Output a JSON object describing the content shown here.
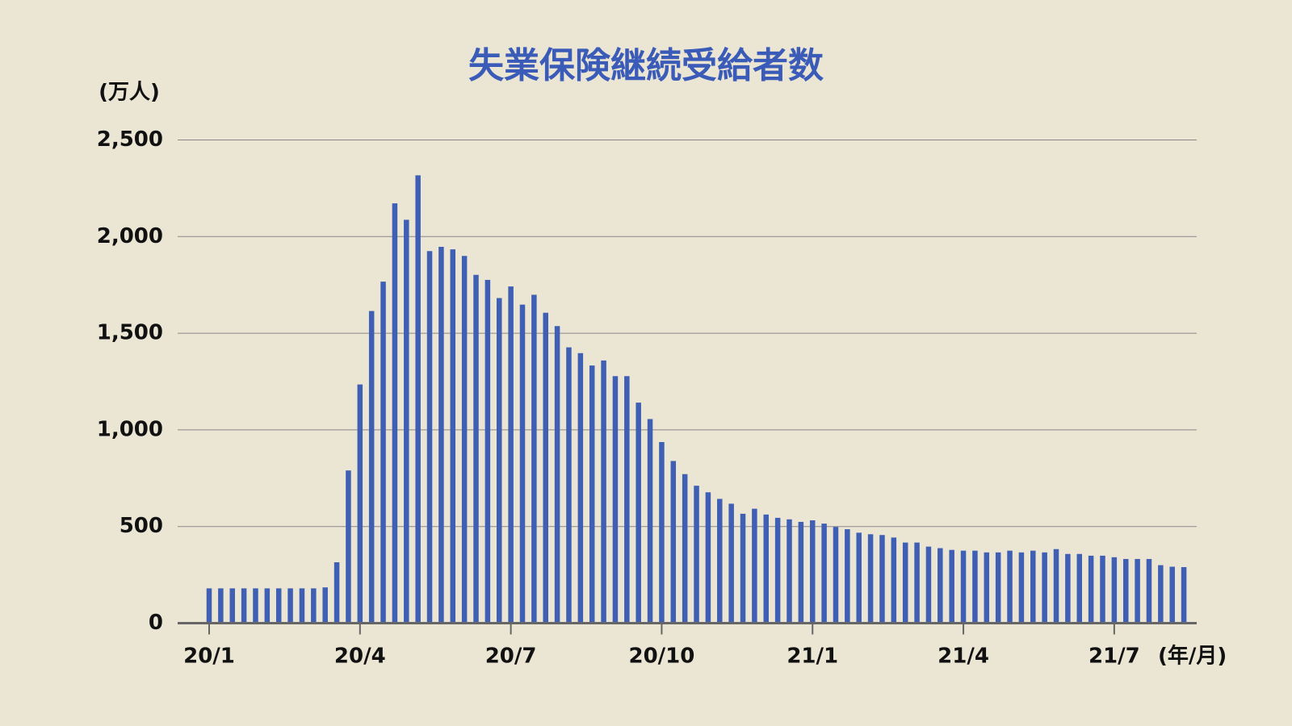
{
  "chart_data": {
    "type": "bar",
    "title": "失業保険継続受給者数",
    "y_label": "(万人)",
    "x_label": "(年/月)",
    "color": "#3f5fb5",
    "grid": true,
    "ylim": [
      0,
      2500
    ],
    "yticks": [
      0,
      500,
      {
        "value": 1000,
        "label": "1,000"
      },
      {
        "value": 1500,
        "label": "1,500"
      },
      {
        "value": 2000,
        "label": "2,000"
      },
      {
        "value": 2500,
        "label": "2,500"
      }
    ],
    "categories": [
      "20/1",
      null,
      null,
      null,
      null,
      null,
      null,
      null,
      null,
      null,
      null,
      null,
      null,
      "20/4",
      null,
      null,
      null,
      null,
      null,
      null,
      null,
      null,
      null,
      null,
      null,
      null,
      "20/7",
      null,
      null,
      null,
      null,
      null,
      null,
      null,
      null,
      null,
      null,
      null,
      null,
      "20/10",
      null,
      null,
      null,
      null,
      null,
      null,
      null,
      null,
      null,
      null,
      null,
      null,
      "21/1",
      null,
      null,
      null,
      null,
      null,
      null,
      null,
      null,
      null,
      null,
      null,
      null,
      "21/4",
      null,
      null,
      null,
      null,
      null,
      null,
      null,
      null,
      null,
      null,
      null,
      null,
      "21/7",
      null,
      null,
      null,
      null,
      null,
      null
    ],
    "values": [
      180,
      180,
      180,
      180,
      180,
      180,
      180,
      180,
      180,
      180,
      185,
      315,
      790,
      1235,
      1615,
      1767,
      2172,
      2087,
      2317,
      1925,
      1947,
      1934,
      1900,
      1802,
      1776,
      1682,
      1742,
      1648,
      1699,
      1606,
      1537,
      1427,
      1397,
      1333,
      1359,
      1278,
      1278,
      1141,
      1056,
      937,
      839,
      771,
      711,
      677,
      643,
      618,
      566,
      592,
      562,
      545,
      537,
      524,
      532,
      515,
      498,
      486,
      468,
      460,
      456,
      443,
      417,
      417,
      396,
      388,
      379,
      375,
      375,
      366,
      366,
      375,
      366,
      375,
      366,
      383,
      358,
      358,
      349,
      349,
      341,
      332,
      332,
      332,
      300,
      292,
      290
    ]
  }
}
